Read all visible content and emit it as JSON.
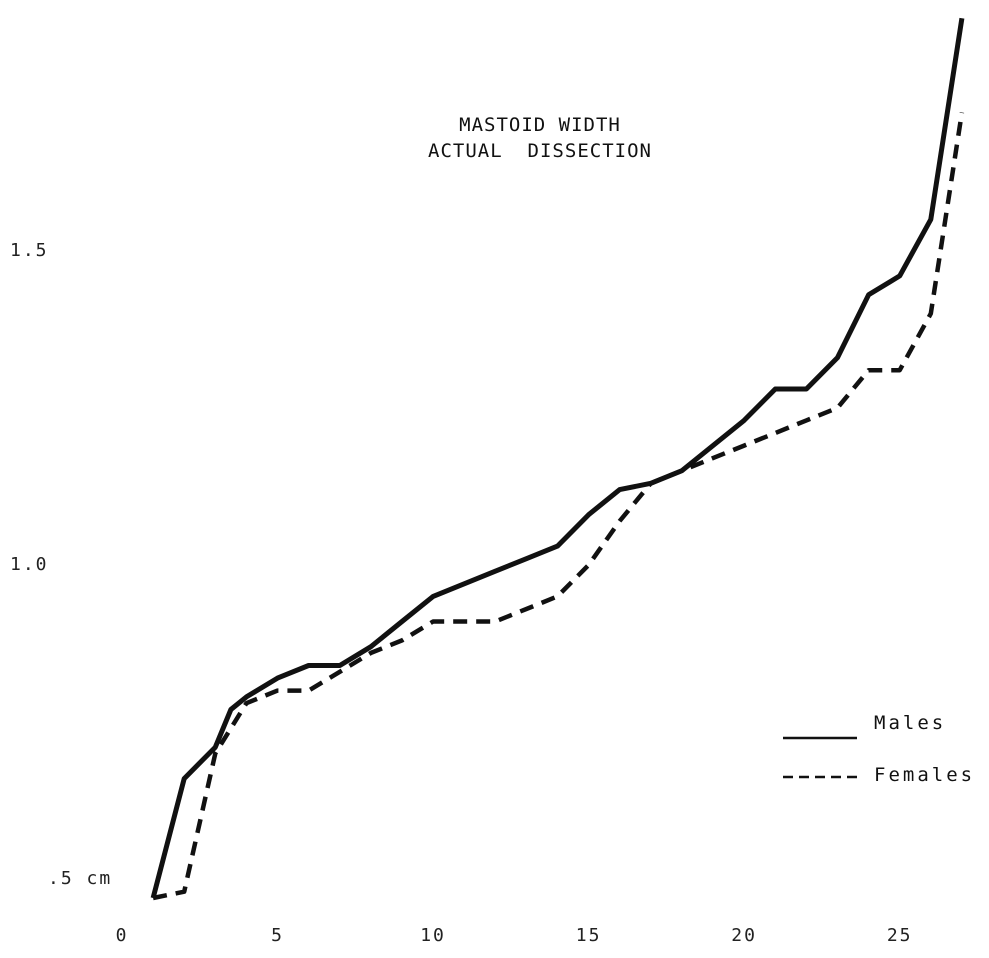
{
  "chart_data": {
    "type": "line",
    "title": "MASTOID WIDTH",
    "subtitle": "ACTUAL  DISSECTION",
    "x_ticks": [
      {
        "value": 0,
        "label": "0"
      },
      {
        "value": 5,
        "label": "5"
      },
      {
        "value": 10,
        "label": "10"
      },
      {
        "value": 15,
        "label": "15"
      },
      {
        "value": 20,
        "label": "20"
      },
      {
        "value": 25,
        "label": "25"
      }
    ],
    "y_ticks": [
      {
        "value": 0.5,
        "label": ".5 cm"
      },
      {
        "value": 1.0,
        "label": "1.0"
      },
      {
        "value": 1.5,
        "label": "1.5"
      }
    ],
    "xlim": [
      0,
      28
    ],
    "ylim": [
      0.47,
      1.88
    ],
    "grid": false,
    "legend_position": "bottom-right",
    "series": [
      {
        "name": "Males",
        "style": "solid",
        "color": "#111111",
        "points": [
          [
            1,
            0.47
          ],
          [
            2,
            0.66
          ],
          [
            3,
            0.71
          ],
          [
            3.5,
            0.77
          ],
          [
            4,
            0.79
          ],
          [
            5,
            0.82
          ],
          [
            6,
            0.84
          ],
          [
            7,
            0.84
          ],
          [
            8,
            0.87
          ],
          [
            9,
            0.91
          ],
          [
            10,
            0.95
          ],
          [
            11,
            0.97
          ],
          [
            12,
            0.99
          ],
          [
            13,
            1.01
          ],
          [
            14,
            1.03
          ],
          [
            15,
            1.08
          ],
          [
            16,
            1.12
          ],
          [
            17,
            1.13
          ],
          [
            18,
            1.15
          ],
          [
            19,
            1.19
          ],
          [
            20,
            1.23
          ],
          [
            21,
            1.28
          ],
          [
            22,
            1.28
          ],
          [
            23,
            1.33
          ],
          [
            24,
            1.43
          ],
          [
            25,
            1.46
          ],
          [
            26,
            1.55
          ],
          [
            27,
            1.87
          ]
        ]
      },
      {
        "name": "Females",
        "style": "dashed",
        "color": "#111111",
        "points": [
          [
            1,
            0.47
          ],
          [
            2,
            0.48
          ],
          [
            3,
            0.7
          ],
          [
            4,
            0.78
          ],
          [
            5,
            0.8
          ],
          [
            6,
            0.8
          ],
          [
            7,
            0.83
          ],
          [
            8,
            0.86
          ],
          [
            9,
            0.88
          ],
          [
            10,
            0.91
          ],
          [
            11,
            0.91
          ],
          [
            12,
            0.91
          ],
          [
            13,
            0.93
          ],
          [
            14,
            0.95
          ],
          [
            15,
            1.0
          ],
          [
            16,
            1.07
          ],
          [
            17,
            1.13
          ],
          [
            18,
            1.15
          ],
          [
            19,
            1.17
          ],
          [
            20,
            1.19
          ],
          [
            21,
            1.21
          ],
          [
            22,
            1.23
          ],
          [
            23,
            1.25
          ],
          [
            24,
            1.31
          ],
          [
            25,
            1.31
          ],
          [
            26,
            1.4
          ],
          [
            27,
            1.72
          ]
        ]
      }
    ]
  }
}
